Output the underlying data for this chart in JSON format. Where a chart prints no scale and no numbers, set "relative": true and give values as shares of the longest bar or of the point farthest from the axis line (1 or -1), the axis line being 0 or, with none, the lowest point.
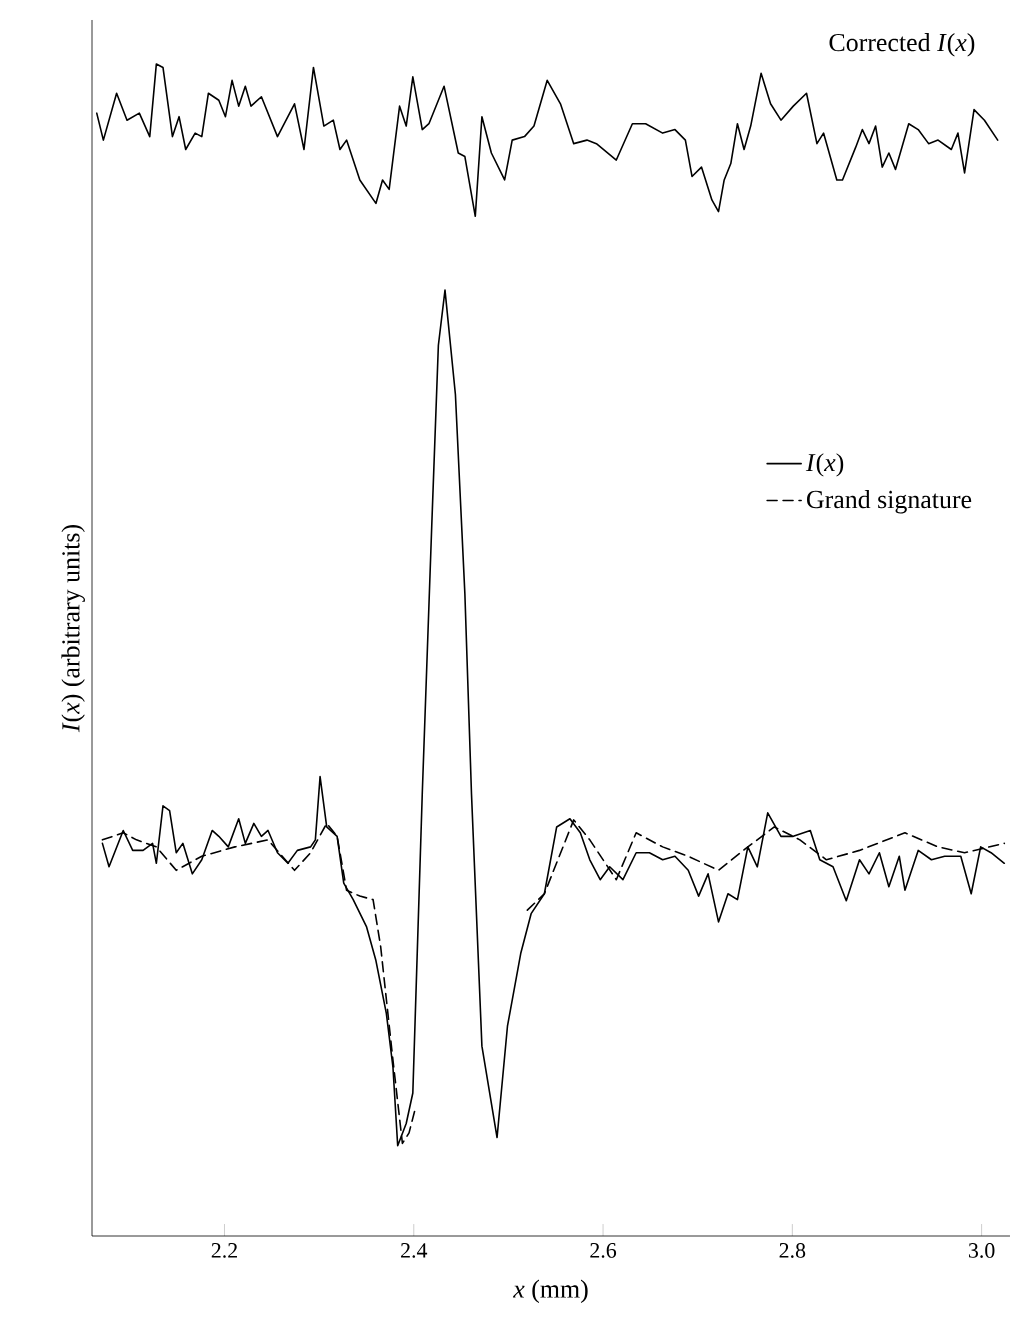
{
  "chart_data": {
    "type": "line",
    "relative": true,
    "xlabel": "*x* (mm)",
    "ylabel": "*I*(*x*) (arbitrary units)",
    "xlim": [
      2.06,
      3.03
    ],
    "xticks": [
      2.2,
      2.4,
      2.6,
      2.8,
      {
        "value": 3,
        "label": "3.0"
      }
    ],
    "legend": "right",
    "grid": false,
    "marker": "none",
    "series": [
      {
        "name": "Corrected *I*(*x*)",
        "color": "#000000",
        "line_style": "solid",
        "x": [
          2.065,
          2.072,
          2.086,
          2.097,
          2.11,
          2.121,
          2.128,
          2.135,
          2.145,
          2.152,
          2.159,
          2.169,
          2.176,
          2.183,
          2.194,
          2.201,
          2.208,
          2.215,
          2.222,
          2.228,
          2.239,
          2.256,
          2.274,
          2.284,
          2.294,
          2.305,
          2.315,
          2.322,
          2.329,
          2.343,
          2.36,
          2.367,
          2.374,
          2.385,
          2.392,
          2.399,
          2.409,
          2.416,
          2.432,
          2.447,
          2.454,
          2.465,
          2.472,
          2.482,
          2.496,
          2.504,
          2.517,
          2.527,
          2.541,
          2.555,
          2.569,
          2.583,
          2.593,
          2.614,
          2.631,
          2.645,
          2.663,
          2.676,
          2.687,
          2.694,
          2.704,
          2.715,
          2.722,
          2.728,
          2.735,
          2.742,
          2.749,
          2.756,
          2.767,
          2.777,
          2.788,
          2.801,
          2.815,
          2.826,
          2.833,
          2.847,
          2.853,
          2.867,
          2.874,
          2.881,
          2.888,
          2.895,
          2.902,
          2.909,
          2.923,
          2.933,
          2.944,
          2.954,
          2.968,
          2.975,
          2.982,
          2.992,
          3.003,
          3.017
        ],
        "values": [
          0.958,
          0.935,
          0.975,
          0.952,
          0.958,
          0.938,
          1.0,
          0.997,
          0.938,
          0.955,
          0.927,
          0.941,
          0.938,
          0.975,
          0.969,
          0.955,
          0.986,
          0.964,
          0.981,
          0.964,
          0.972,
          0.938,
          0.966,
          0.927,
          0.997,
          0.947,
          0.952,
          0.927,
          0.935,
          0.901,
          0.881,
          0.901,
          0.893,
          0.964,
          0.947,
          0.989,
          0.944,
          0.949,
          0.981,
          0.924,
          0.921,
          0.87,
          0.955,
          0.924,
          0.901,
          0.935,
          0.938,
          0.947,
          0.986,
          0.966,
          0.932,
          0.935,
          0.932,
          0.918,
          0.949,
          0.949,
          0.941,
          0.944,
          0.935,
          0.904,
          0.912,
          0.884,
          0.874,
          0.901,
          0.915,
          0.949,
          0.927,
          0.947,
          0.992,
          0.966,
          0.952,
          0.964,
          0.975,
          0.932,
          0.941,
          0.901,
          0.901,
          0.929,
          0.944,
          0.932,
          0.947,
          0.912,
          0.924,
          0.91,
          0.949,
          0.944,
          0.932,
          0.935,
          0.927,
          0.941,
          0.907,
          0.961,
          0.952,
          0.935
        ]
      },
      {
        "name": "*I*(*x*)",
        "color": "#000000",
        "line_style": "solid",
        "x": [
          2.071,
          2.078,
          2.093,
          2.103,
          2.114,
          2.124,
          2.128,
          2.135,
          2.142,
          2.149,
          2.156,
          2.166,
          2.176,
          2.187,
          2.194,
          2.204,
          2.215,
          2.222,
          2.231,
          2.239,
          2.246,
          2.256,
          2.267,
          2.277,
          2.291,
          2.296,
          2.301,
          2.308,
          2.319,
          2.326,
          2.336,
          2.35,
          2.36,
          2.371,
          2.378,
          2.383,
          2.392,
          2.399,
          2.409,
          2.419,
          2.426,
          2.433,
          2.444,
          2.454,
          2.461,
          2.472,
          2.488,
          2.499,
          2.513,
          2.524,
          2.538,
          2.551,
          2.565,
          2.576,
          2.586,
          2.597,
          2.607,
          2.621,
          2.635,
          2.649,
          2.663,
          2.676,
          2.69,
          2.701,
          2.711,
          2.722,
          2.732,
          2.742,
          2.753,
          2.763,
          2.774,
          2.788,
          2.801,
          2.819,
          2.829,
          2.843,
          2.857,
          2.871,
          2.881,
          2.892,
          2.902,
          2.913,
          2.919,
          2.933,
          2.947,
          2.961,
          2.978,
          2.989,
          2.999,
          3.01,
          3.024
        ],
        "values": [
          0.335,
          0.315,
          0.346,
          0.329,
          0.329,
          0.335,
          0.318,
          0.367,
          0.363,
          0.327,
          0.335,
          0.309,
          0.321,
          0.346,
          0.341,
          0.332,
          0.356,
          0.335,
          0.352,
          0.341,
          0.346,
          0.327,
          0.318,
          0.329,
          0.332,
          0.338,
          0.392,
          0.349,
          0.341,
          0.301,
          0.287,
          0.264,
          0.235,
          0.19,
          0.144,
          0.077,
          0.096,
          0.122,
          0.378,
          0.606,
          0.76,
          0.807,
          0.718,
          0.548,
          0.377,
          0.162,
          0.084,
          0.179,
          0.241,
          0.275,
          0.292,
          0.349,
          0.356,
          0.344,
          0.321,
          0.304,
          0.315,
          0.304,
          0.327,
          0.327,
          0.321,
          0.324,
          0.312,
          0.29,
          0.309,
          0.268,
          0.292,
          0.287,
          0.332,
          0.315,
          0.361,
          0.341,
          0.341,
          0.346,
          0.321,
          0.315,
          0.286,
          0.321,
          0.309,
          0.327,
          0.298,
          0.324,
          0.295,
          0.329,
          0.321,
          0.324,
          0.324,
          0.292,
          0.332,
          0.327,
          0.318
        ]
      },
      {
        "name": "Grand signature",
        "color": "#000000",
        "line_style": "dashed",
        "x": [
          2.071,
          2.093,
          2.107,
          2.128,
          2.149,
          2.176,
          2.211,
          2.246,
          2.274,
          2.291,
          2.308,
          2.319,
          2.329,
          2.343,
          2.357,
          2.365,
          2.378,
          2.388,
          2.395,
          2.402,
          2.461,
          2.52,
          2.538,
          2.569,
          2.586,
          2.614,
          2.635,
          2.663,
          2.69,
          2.722,
          2.753,
          2.781,
          2.808,
          2.836,
          2.871,
          2.919,
          2.954,
          2.982,
          3.024
        ],
        "values": [
          0.338,
          0.344,
          0.338,
          0.332,
          0.312,
          0.324,
          0.332,
          0.338,
          0.312,
          0.327,
          0.352,
          0.341,
          0.295,
          0.29,
          0.287,
          0.247,
          0.15,
          0.079,
          0.088,
          0.11,
          null,
          0.278,
          0.292,
          0.355,
          0.338,
          0.304,
          0.344,
          0.332,
          0.324,
          0.312,
          0.332,
          0.349,
          0.338,
          0.321,
          0.329,
          0.344,
          0.332,
          0.327,
          0.335
        ]
      }
    ]
  }
}
